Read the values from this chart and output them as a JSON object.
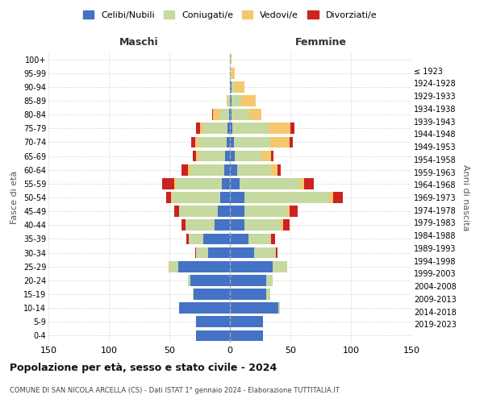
{
  "age_groups": [
    "0-4",
    "5-9",
    "10-14",
    "15-19",
    "20-24",
    "25-29",
    "30-34",
    "35-39",
    "40-44",
    "45-49",
    "50-54",
    "55-59",
    "60-64",
    "65-69",
    "70-74",
    "75-79",
    "80-84",
    "85-89",
    "90-94",
    "95-99",
    "100+"
  ],
  "birth_years": [
    "2019-2023",
    "2014-2018",
    "2009-2013",
    "2004-2008",
    "1999-2003",
    "1994-1998",
    "1989-1993",
    "1984-1988",
    "1979-1983",
    "1974-1978",
    "1969-1973",
    "1964-1968",
    "1959-1963",
    "1954-1958",
    "1949-1953",
    "1944-1948",
    "1939-1943",
    "1934-1938",
    "1929-1933",
    "1924-1928",
    "≤ 1923"
  ],
  "colors": {
    "celibi": "#4472c4",
    "coniugati": "#c5d9a0",
    "vedovi": "#f5c76e",
    "divorziati": "#cc2222"
  },
  "males": {
    "celibi": [
      28,
      28,
      42,
      30,
      33,
      43,
      18,
      22,
      13,
      10,
      8,
      7,
      5,
      4,
      3,
      2,
      1,
      0,
      0,
      0,
      0
    ],
    "coniugati": [
      0,
      0,
      0,
      1,
      2,
      7,
      10,
      12,
      24,
      32,
      40,
      38,
      28,
      22,
      23,
      20,
      8,
      2,
      0,
      0,
      0
    ],
    "vedovi": [
      0,
      0,
      0,
      0,
      0,
      1,
      0,
      0,
      0,
      0,
      1,
      1,
      2,
      2,
      3,
      3,
      5,
      1,
      0,
      0,
      0
    ],
    "divorziati": [
      0,
      0,
      0,
      0,
      0,
      0,
      1,
      2,
      3,
      4,
      4,
      10,
      5,
      3,
      3,
      3,
      1,
      0,
      0,
      0,
      0
    ]
  },
  "females": {
    "celibi": [
      27,
      27,
      40,
      30,
      30,
      35,
      20,
      15,
      12,
      12,
      12,
      8,
      6,
      4,
      3,
      2,
      1,
      1,
      1,
      0,
      0
    ],
    "coniugati": [
      0,
      0,
      1,
      3,
      5,
      12,
      18,
      18,
      30,
      35,
      70,
      50,
      28,
      22,
      30,
      30,
      15,
      8,
      3,
      1,
      0
    ],
    "vedovi": [
      0,
      0,
      0,
      0,
      0,
      0,
      0,
      1,
      2,
      2,
      3,
      3,
      5,
      8,
      16,
      18,
      10,
      12,
      8,
      3,
      1
    ],
    "divorziati": [
      0,
      0,
      0,
      0,
      0,
      0,
      1,
      3,
      5,
      7,
      8,
      8,
      3,
      2,
      3,
      3,
      0,
      0,
      0,
      0,
      0
    ]
  },
  "title": "Popolazione per età, sesso e stato civile - 2024",
  "subtitle": "COMUNE DI SAN NICOLA ARCELLA (CS) - Dati ISTAT 1° gennaio 2024 - Elaborazione TUTTITALIA.IT",
  "xlabel_left": "Maschi",
  "xlabel_right": "Femmine",
  "ylabel_left": "Fasce di età",
  "ylabel_right": "Anni di nascita",
  "xlim": 150,
  "legend_labels": [
    "Celibi/Nubili",
    "Coniugati/e",
    "Vedovi/e",
    "Divorziati/e"
  ],
  "bg_color": "#ffffff",
  "grid_color": "#cccccc"
}
